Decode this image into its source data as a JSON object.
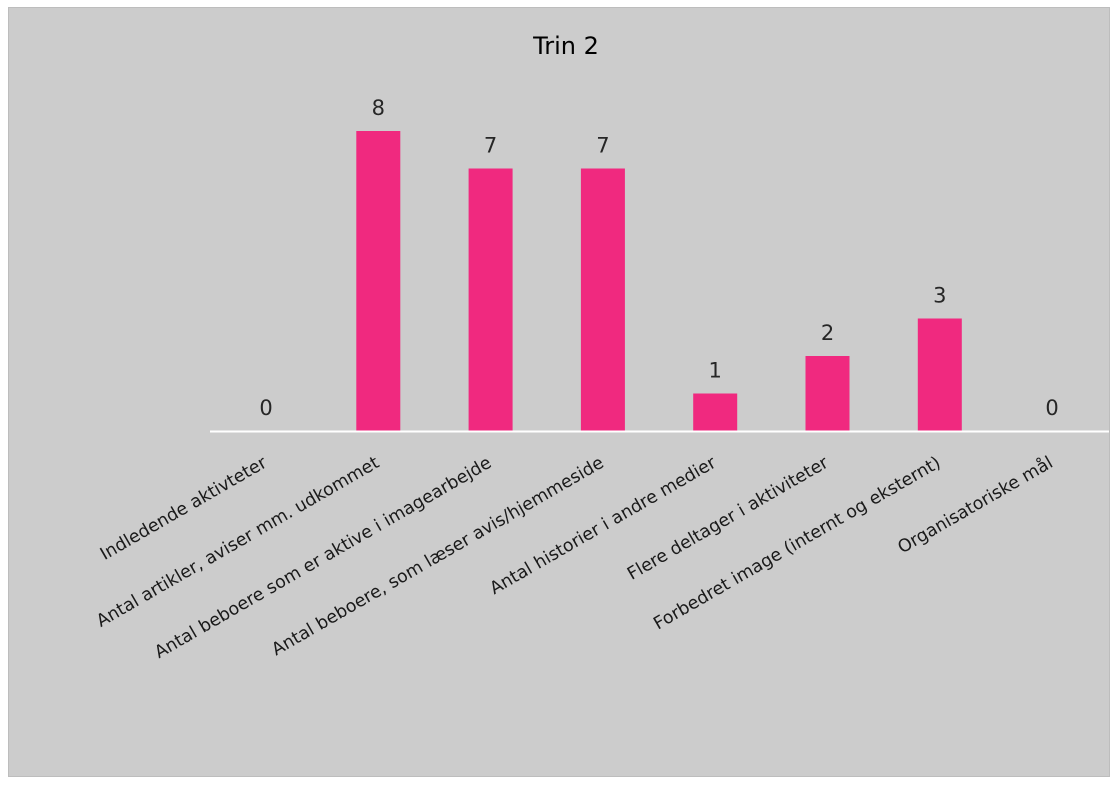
{
  "chart_data": {
    "type": "bar",
    "title": "Trin 2",
    "categories": [
      "Indledende aktivteter",
      "Antal artikler, aviser mm. udkommet",
      "Antal beboere som er aktive i imagearbejde",
      "Antal beboere, som læser avis/hjemmeside",
      "Antal historier i andre medier",
      "Flere deltager i aktiviteter",
      "Forbedret image (internt og eksternt)",
      "Organisatoriske mål"
    ],
    "values": [
      0,
      8,
      7,
      7,
      1,
      2,
      3,
      0
    ],
    "data_labels": [
      "0",
      "8",
      "7",
      "7",
      "1",
      "2",
      "3",
      "0"
    ],
    "bar_color": "#f0297f",
    "background_color": "#cccccc",
    "grid": false,
    "legend": "none"
  }
}
